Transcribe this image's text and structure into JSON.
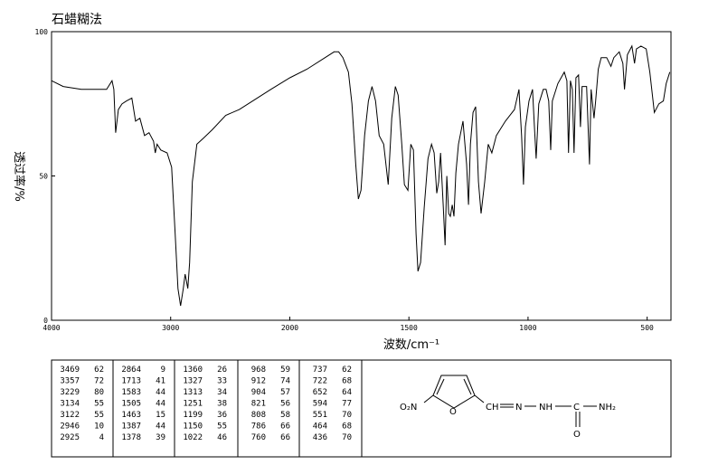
{
  "chart_data": {
    "type": "line",
    "title": "石蜡糊法",
    "xlabel": "波数/cm⁻¹",
    "ylabel": "透过率/%",
    "x": [
      4000,
      3902,
      3750,
      3598,
      3538,
      3492,
      3477,
      3462,
      3439,
      3409,
      3371,
      3326,
      3295,
      3258,
      3220,
      3182,
      3144,
      3129,
      3114,
      3083,
      3030,
      2992,
      2962,
      2939,
      2917,
      2894,
      2879,
      2856,
      2841,
      2818,
      2780,
      2727,
      2652,
      2538,
      2424,
      2311,
      2159,
      2000,
      1928,
      1852,
      1814,
      1795,
      1777,
      1754,
      1739,
      1723,
      1712,
      1701,
      1686,
      1670,
      1655,
      1640,
      1625,
      1606,
      1587,
      1572,
      1557,
      1545,
      1530,
      1519,
      1504,
      1492,
      1481,
      1470,
      1462,
      1451,
      1436,
      1420,
      1405,
      1394,
      1383,
      1375,
      1367,
      1356,
      1348,
      1341,
      1333,
      1326,
      1318,
      1311,
      1303,
      1292,
      1273,
      1258,
      1250,
      1242,
      1231,
      1220,
      1208,
      1197,
      1182,
      1167,
      1152,
      1133,
      1095,
      1057,
      1038,
      1027,
      1019,
      1011,
      996,
      981,
      973,
      966,
      955,
      936,
      924,
      913,
      905,
      898,
      875,
      848,
      837,
      830,
      822,
      814,
      807,
      799,
      788,
      780,
      773,
      754,
      742,
      735,
      723,
      716,
      705,
      693,
      670,
      652,
      640,
      617,
      602,
      595,
      583,
      564,
      553,
      545,
      526,
      504,
      489,
      470,
      451,
      432,
      420,
      405
    ],
    "series": [
      {
        "color": "#000000",
        "values": [
          83,
          81,
          80,
          80,
          80,
          83,
          80,
          65,
          73,
          75,
          76,
          77,
          69,
          70,
          64,
          65,
          62,
          58,
          61,
          59,
          58,
          53,
          30,
          11,
          5,
          11,
          16,
          11,
          20,
          48,
          61,
          63,
          66,
          71,
          73,
          76,
          80,
          84,
          87,
          91,
          93,
          93,
          91,
          86,
          75,
          54,
          42,
          45,
          64,
          76,
          81,
          76,
          64,
          61,
          47,
          70,
          81,
          78,
          61,
          47,
          45,
          61,
          59,
          30,
          17,
          20,
          39,
          56,
          61,
          58,
          44,
          48,
          58,
          40,
          26,
          50,
          37,
          36,
          40,
          36,
          51,
          61,
          69,
          54,
          40,
          61,
          72,
          74,
          48,
          37,
          48,
          61,
          58,
          64,
          69,
          73,
          80,
          64,
          47,
          67,
          76,
          80,
          67,
          56,
          75,
          80,
          80,
          76,
          59,
          76,
          82,
          86,
          83,
          58,
          83,
          80,
          58,
          84,
          85,
          67,
          81,
          81,
          54,
          80,
          70,
          76,
          87,
          91,
          91,
          88,
          91,
          93,
          89,
          80,
          92,
          95,
          89,
          94,
          95,
          94,
          86,
          72,
          75,
          76,
          82,
          86
        ]
      }
    ],
    "xlim": [
      4000,
      400
    ],
    "ylim": [
      0,
      100
    ],
    "xticks": [
      4000,
      3000,
      2000,
      1500,
      1000,
      500
    ],
    "yticks": [
      0,
      50,
      100
    ],
    "x_scale_change": 2000
  },
  "peak_table": [
    [
      [
        3469,
        62
      ],
      [
        3357,
        72
      ],
      [
        3229,
        80
      ],
      [
        3134,
        55
      ],
      [
        3122,
        55
      ],
      [
        2946,
        10
      ],
      [
        2925,
        4
      ]
    ],
    [
      [
        2864,
        9
      ],
      [
        1713,
        41
      ],
      [
        1583,
        44
      ],
      [
        1505,
        44
      ],
      [
        1463,
        15
      ],
      [
        1387,
        44
      ],
      [
        1378,
        39
      ]
    ],
    [
      [
        1360,
        26
      ],
      [
        1327,
        33
      ],
      [
        1313,
        34
      ],
      [
        1251,
        38
      ],
      [
        1199,
        36
      ],
      [
        1150,
        55
      ],
      [
        1022,
        46
      ]
    ],
    [
      [
        968,
        59
      ],
      [
        912,
        74
      ],
      [
        904,
        57
      ],
      [
        821,
        56
      ],
      [
        808,
        58
      ],
      [
        786,
        66
      ],
      [
        760,
        66
      ]
    ],
    [
      [
        737,
        62
      ],
      [
        722,
        68
      ],
      [
        652,
        64
      ],
      [
        594,
        77
      ],
      [
        551,
        70
      ],
      [
        464,
        68
      ],
      [
        436,
        70
      ]
    ]
  ],
  "structure": {
    "labels": [
      "O₂N",
      "O",
      "CH",
      "N",
      "NH",
      "C",
      "NH₂",
      "O"
    ]
  }
}
